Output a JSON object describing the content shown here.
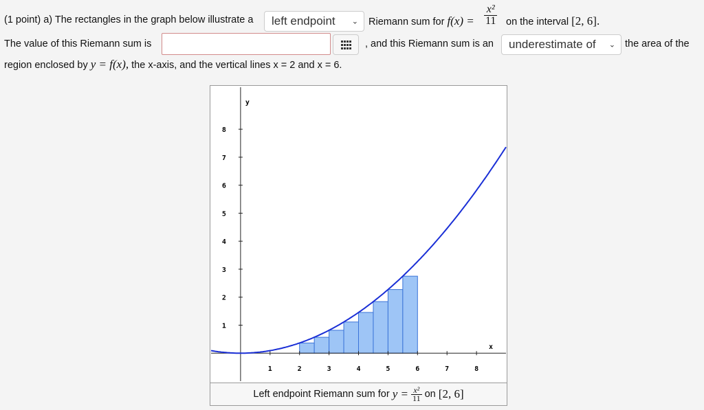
{
  "problem": {
    "intro": "(1 point) a) The rectangles in the graph below illustrate a",
    "riemann_for": "Riemann sum for",
    "fx": "f(x) =",
    "frac_num": "x²",
    "frac_den": "11",
    "on_interval": "on the interval",
    "interval": "[2, 6].",
    "value_text": "The value of this Riemann sum is",
    "and_text": ", and this Riemann sum is an",
    "area_text": "the area of the",
    "region_text_1": "region enclosed by",
    "region_math": "y = f(x),",
    "region_text_2": "the x-axis, and the vertical lines x = 2 and x = 6."
  },
  "controls": {
    "sum_type": "left endpoint",
    "estimate_type": "underestimate of",
    "answer_value": "",
    "chevron": "⌄"
  },
  "caption": {
    "text": "Left endpoint Riemann sum for",
    "y_eq": "y =",
    "frac_num": "x²",
    "frac_den": "11",
    "on": "on",
    "interval": "[2, 6]"
  },
  "chart_data": {
    "type": "line",
    "function": "x^2/11",
    "xlabel": "x",
    "ylabel": "y",
    "xlim": [
      -1,
      9
    ],
    "ylim": [
      -1,
      9.5
    ],
    "x_ticks": [
      1,
      2,
      3,
      4,
      5,
      6,
      7,
      8
    ],
    "y_ticks": [
      1,
      2,
      3,
      4,
      5,
      6,
      7,
      8
    ],
    "curve_color": "#1a2fd6",
    "rect_fill": "#9ec5f6",
    "rect_stroke": "#3a73d8",
    "rectangles": [
      {
        "x0": 2.0,
        "x1": 2.5,
        "height": 0.364
      },
      {
        "x0": 2.5,
        "x1": 3.0,
        "height": 0.568
      },
      {
        "x0": 3.0,
        "x1": 3.5,
        "height": 0.818
      },
      {
        "x0": 3.5,
        "x1": 4.0,
        "height": 1.114
      },
      {
        "x0": 4.0,
        "x1": 4.5,
        "height": 1.455
      },
      {
        "x0": 4.5,
        "x1": 5.0,
        "height": 1.841
      },
      {
        "x0": 5.0,
        "x1": 5.5,
        "height": 2.273
      },
      {
        "x0": 5.5,
        "x1": 6.0,
        "height": 2.75
      }
    ]
  }
}
